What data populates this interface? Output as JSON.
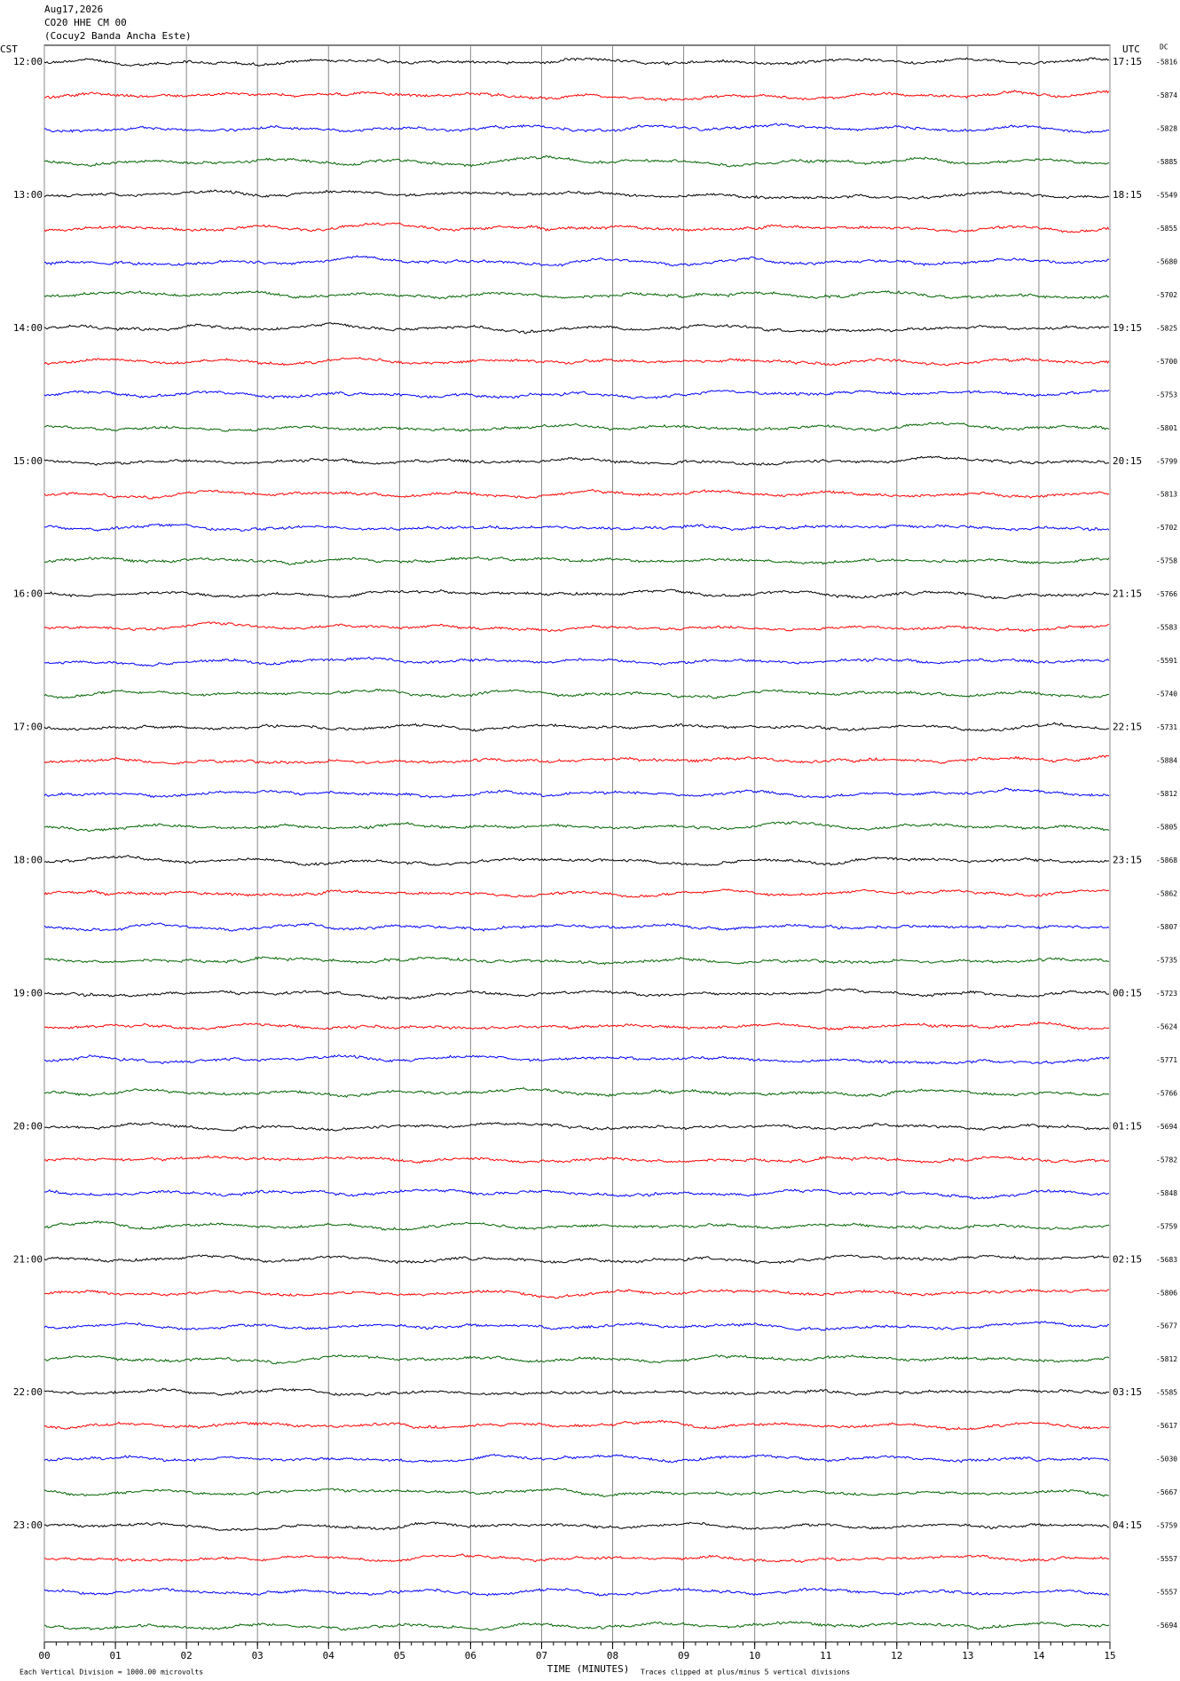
{
  "chart_data": {
    "type": "helicorder",
    "header": [
      "Aug17,2026",
      "CO20 HHE CM 00",
      "(Cocuy2 Banda Ancha Este)"
    ],
    "left_axis_title": "CST",
    "right_axis_title": "UTC",
    "dc_title": "DC",
    "cst_labels": [
      "12:00",
      "13:00",
      "14:00",
      "15:00",
      "16:00",
      "17:00",
      "18:00",
      "19:00",
      "20:00",
      "21:00",
      "22:00",
      "23:00"
    ],
    "utc_labels": [
      "17:15",
      "18:15",
      "19:15",
      "20:15",
      "21:15",
      "22:15",
      "23:15",
      "00:15",
      "01:15",
      "02:15",
      "03:15",
      "04:15"
    ],
    "dc_values": [
      -5816,
      -5874,
      -5828,
      -5885,
      -5549,
      -5855,
      -5680,
      -5702,
      -5825,
      -5700,
      -5753,
      -5801,
      -5799,
      -5813,
      -5702,
      -5758,
      -5766,
      -5583,
      -5591,
      -5740,
      -5731,
      -5884,
      -5812,
      -5805,
      -5868,
      -5862,
      -5807,
      -5735,
      -5723,
      -5624,
      -5771,
      -5766,
      -5694,
      -5782,
      -5848,
      -5759,
      -5683,
      -5806,
      -5677,
      -5812,
      -5585,
      -5617,
      -5030,
      -5667,
      -5759,
      -5557,
      -5557,
      -5694
    ],
    "trace_colors": [
      "#000000",
      "#ff0000",
      "#0000ff",
      "#006400"
    ],
    "xlabel": "TIME (MINUTES)",
    "xlim": [
      0,
      15
    ],
    "xticks": [
      {
        "value": 0,
        "label": "00"
      },
      {
        "value": 1,
        "label": "01"
      },
      {
        "value": 2,
        "label": "02"
      },
      {
        "value": 3,
        "label": "03"
      },
      {
        "value": 4,
        "label": "04"
      },
      {
        "value": 5,
        "label": "05"
      },
      {
        "value": 6,
        "label": "06"
      },
      {
        "value": 7,
        "label": "07"
      },
      {
        "value": 8,
        "label": "08"
      },
      {
        "value": 9,
        "label": "09"
      },
      {
        "value": 10,
        "label": "10"
      },
      {
        "value": 11,
        "label": "11"
      },
      {
        "value": 12,
        "label": "12"
      },
      {
        "value": 13,
        "label": "13"
      },
      {
        "value": 14,
        "label": "14"
      },
      {
        "value": 15,
        "label": "15"
      }
    ],
    "grid": true,
    "footer_left": "Each Vertical Division = 1000.00 microvolts",
    "footer_right": "Traces clipped at plus/minus 5 vertical divisions"
  }
}
